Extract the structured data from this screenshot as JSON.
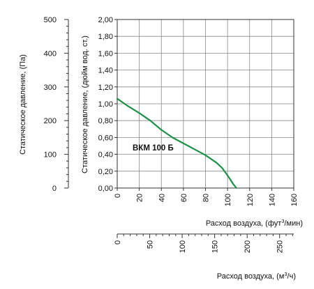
{
  "chart_data": {
    "type": "line",
    "series": [
      {
        "name": "ВКМ 100 Б",
        "color": "#1a9146",
        "x": [
          0,
          10,
          20,
          30,
          40,
          50,
          60,
          70,
          80,
          90,
          95,
          100,
          105,
          108
        ],
        "y": [
          1.06,
          0.97,
          0.89,
          0.8,
          0.69,
          0.6,
          0.53,
          0.46,
          0.39,
          0.3,
          0.24,
          0.15,
          0.05,
          0.0
        ]
      }
    ],
    "annotation": "ВКМ 100 Б",
    "grid": true,
    "axes": {
      "x_cfm": {
        "label_prefix": "Расход воздуха, (фут",
        "label_sup": "3",
        "label_suffix": "/мин)",
        "range": [
          0,
          160
        ],
        "ticks": [
          "0",
          "20",
          "40",
          "60",
          "80",
          "100",
          "120",
          "140",
          "160"
        ]
      },
      "x_m3h": {
        "label_prefix": "Расход воздуха, (м",
        "label_sup": "3",
        "label_suffix": "/ч)",
        "range": [
          0,
          271.8
        ],
        "ticks": [
          "0",
          "50",
          "100",
          "150",
          "200",
          "250"
        ]
      },
      "y_inwg": {
        "label": "Статическое давление, (дюйм вод. ст.)",
        "range": [
          0,
          2.0
        ],
        "ticks": [
          "0,00",
          "0,20",
          "0,40",
          "0,60",
          "0,80",
          "1,00",
          "1,20",
          "1,40",
          "1,60",
          "1,80",
          "2,00"
        ]
      },
      "y_pa": {
        "label": "Статическое давление, (Па)",
        "range": [
          0,
          500
        ],
        "ticks": [
          "0",
          "100",
          "200",
          "300",
          "400",
          "500"
        ]
      }
    }
  }
}
